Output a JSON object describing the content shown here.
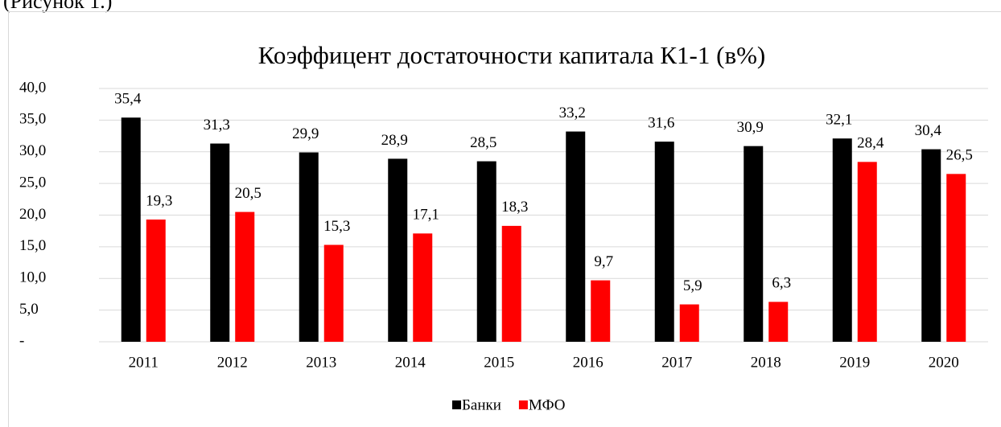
{
  "caption": "(Рисунок 1.)",
  "chart_data": {
    "type": "bar",
    "title": "Коэффицент достаточности капитала К1-1 (в%)",
    "categories": [
      "2011",
      "2012",
      "2013",
      "2014",
      "2015",
      "2016",
      "2017",
      "2018",
      "2019",
      "2020"
    ],
    "series": [
      {
        "name": "Банки",
        "color": "#000000",
        "values": [
          35.4,
          31.3,
          29.9,
          28.9,
          28.5,
          33.2,
          31.6,
          30.9,
          32.1,
          30.4
        ],
        "value_labels": [
          "35,4",
          "31,3",
          "29,9",
          "28,9",
          "28,5",
          "33,2",
          "31,6",
          "30,9",
          "32,1",
          "30,4"
        ]
      },
      {
        "name": "МФО",
        "color": "#ff0000",
        "values": [
          19.3,
          20.5,
          15.3,
          17.1,
          18.3,
          9.7,
          5.9,
          6.3,
          28.4,
          26.5
        ],
        "value_labels": [
          "19,3",
          "20,5",
          "15,3",
          "17,1",
          "18,3",
          "9,7",
          "5,9",
          "6,3",
          "28,4",
          "26,5"
        ]
      }
    ],
    "ylim": [
      0,
      40
    ],
    "yticks": [
      {
        "value": 0,
        "label": "-"
      },
      {
        "value": 5,
        "label": "5,0"
      },
      {
        "value": 10,
        "label": "10,0"
      },
      {
        "value": 15,
        "label": "15,0"
      },
      {
        "value": 20,
        "label": "20,0"
      },
      {
        "value": 25,
        "label": "25,0"
      },
      {
        "value": 30,
        "label": "30,0"
      },
      {
        "value": 35,
        "label": "35,0"
      },
      {
        "value": 40,
        "label": "40,0"
      }
    ],
    "grid": true,
    "legend": "bottom"
  }
}
